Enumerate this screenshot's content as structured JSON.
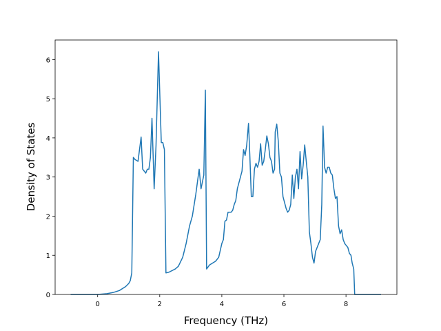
{
  "chart_data": {
    "type": "line",
    "x_label": "Frequency (THz)",
    "y_label": "Density of States",
    "xlim": [
      -1.37,
      9.64
    ],
    "ylim": [
      0,
      6.5
    ],
    "xticks": [
      0,
      2,
      4,
      6,
      8
    ],
    "yticks": [
      0,
      1,
      2,
      3,
      4,
      5,
      6
    ],
    "x": [
      -0.87,
      0,
      0.3,
      0.5,
      0.7,
      0.9,
      1.0,
      1.05,
      1.1,
      1.15,
      1.2,
      1.3,
      1.4,
      1.45,
      1.55,
      1.6,
      1.65,
      1.7,
      1.75,
      1.82,
      1.88,
      1.96,
      2.05,
      2.1,
      2.15,
      2.2,
      2.3,
      2.5,
      2.6,
      2.74,
      2.85,
      2.96,
      3.05,
      3.16,
      3.27,
      3.33,
      3.42,
      3.47,
      3.51,
      3.6,
      3.8,
      3.9,
      4.0,
      4.05,
      4.1,
      4.15,
      4.2,
      4.3,
      4.35,
      4.4,
      4.45,
      4.5,
      4.55,
      4.6,
      4.65,
      4.7,
      4.75,
      4.8,
      4.86,
      4.9,
      4.95,
      5.0,
      5.05,
      5.1,
      5.15,
      5.2,
      5.25,
      5.3,
      5.35,
      5.4,
      5.45,
      5.5,
      5.55,
      5.6,
      5.65,
      5.7,
      5.72,
      5.77,
      5.82,
      5.87,
      5.92,
      5.97,
      6.07,
      6.12,
      6.17,
      6.22,
      6.27,
      6.32,
      6.37,
      6.42,
      6.47,
      6.52,
      6.57,
      6.62,
      6.67,
      6.72,
      6.77,
      6.82,
      6.87,
      6.92,
      6.97,
      7.02,
      7.07,
      7.12,
      7.17,
      7.22,
      7.26,
      7.31,
      7.36,
      7.41,
      7.46,
      7.51,
      7.56,
      7.61,
      7.66,
      7.71,
      7.76,
      7.81,
      7.86,
      7.91,
      7.96,
      8.01,
      8.06,
      8.11,
      8.16,
      8.2,
      8.25,
      8.28,
      9.13
    ],
    "series": [
      {
        "color": "#1f77b4",
        "values": [
          0,
          0,
          0.02,
          0.05,
          0.1,
          0.2,
          0.28,
          0.35,
          0.55,
          3.5,
          3.45,
          3.4,
          4.02,
          3.2,
          3.1,
          3.2,
          3.2,
          3.5,
          4.5,
          2.7,
          3.8,
          6.2,
          3.88,
          3.88,
          3.7,
          0.55,
          0.57,
          0.65,
          0.72,
          0.95,
          1.3,
          1.75,
          2.0,
          2.55,
          3.2,
          2.7,
          3.05,
          5.22,
          0.65,
          0.75,
          0.85,
          0.95,
          1.3,
          1.4,
          1.87,
          1.9,
          2.1,
          2.1,
          2.15,
          2.3,
          2.4,
          2.7,
          2.85,
          3.0,
          3.15,
          3.7,
          3.55,
          3.8,
          4.37,
          3.6,
          2.5,
          2.5,
          3.2,
          3.35,
          3.25,
          3.4,
          3.85,
          3.3,
          3.4,
          3.7,
          4.05,
          3.85,
          3.5,
          3.4,
          3.1,
          3.2,
          4.15,
          4.35,
          3.9,
          3.1,
          3.0,
          2.5,
          2.2,
          2.1,
          2.15,
          2.3,
          3.05,
          2.45,
          3.0,
          3.2,
          2.7,
          3.65,
          2.95,
          3.3,
          3.82,
          3.4,
          3.0,
          1.6,
          1.3,
          0.95,
          0.8,
          1.1,
          1.2,
          1.3,
          1.4,
          2.3,
          4.3,
          3.25,
          3.1,
          3.25,
          3.25,
          3.1,
          3.05,
          2.7,
          2.45,
          2.5,
          1.75,
          1.55,
          1.65,
          1.4,
          1.3,
          1.25,
          1.2,
          1.05,
          1.0,
          0.8,
          0.65,
          0,
          0
        ]
      }
    ]
  }
}
